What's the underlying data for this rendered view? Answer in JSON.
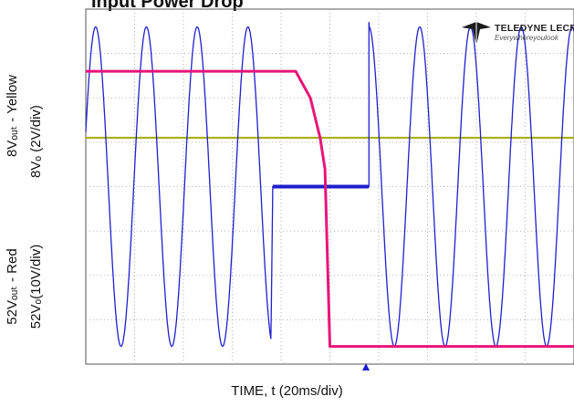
{
  "title": "Input Power Drop",
  "logo": {
    "name": "TELEDYNE LECROY",
    "tagline": "Everywhereyoulook"
  },
  "y_labels": {
    "upper_line1": "8Vₒᵤₜ - Yellow",
    "upper_line2": "8Vₒ (2V/div)",
    "lower_line1": "52Vₒᵤₜ - Red",
    "lower_line2": "52Vₒ(10V/div)"
  },
  "x_label": "TIME, t (20ms/div)",
  "colors": {
    "input_sine": "#1f1fd0",
    "out_52v": "#e8147a",
    "out_8v": "#a9b01e",
    "grid": "#9a9a9a",
    "trigger_marker": "#1f1fd0"
  },
  "chart_data": {
    "type": "line",
    "xlabel": "TIME, t (20ms/div)",
    "x_unit": "ms",
    "x_range": [
      0,
      200
    ],
    "y_range_div": [
      -4,
      4
    ],
    "grid": true,
    "h_divisions": 10,
    "v_divisions": 8,
    "series": [
      {
        "name": "",
        "description_visible": "input sine",
        "period_ms": 20.8,
        "amplitude_div": 3.6,
        "dropout_ms": [
          76,
          116
        ],
        "dropout_level_div": 0
      },
      {
        "name": "52Vₒᵤₜ - Red",
        "scale": "10V/div",
        "x": [
          0,
          86,
          92,
          96,
          98,
          100,
          200
        ],
        "y_div": [
          2.6,
          2.6,
          2.0,
          1.1,
          0.4,
          -3.6,
          -3.6
        ]
      },
      {
        "name": "8Vₒᵤₜ - Yellow",
        "scale": "2V/div",
        "x": [
          0,
          200
        ],
        "y_div": [
          1.1,
          1.1
        ]
      }
    ]
  }
}
